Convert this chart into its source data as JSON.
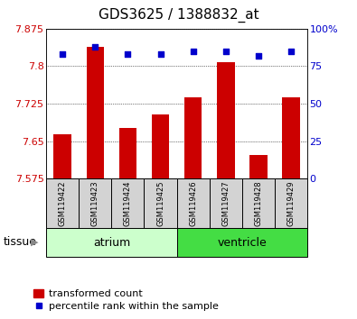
{
  "title": "GDS3625 / 1388832_at",
  "samples": [
    "GSM119422",
    "GSM119423",
    "GSM119424",
    "GSM119425",
    "GSM119426",
    "GSM119427",
    "GSM119428",
    "GSM119429"
  ],
  "bar_values": [
    7.663,
    7.838,
    7.677,
    7.703,
    7.738,
    7.808,
    7.623,
    7.738
  ],
  "percentile_values": [
    83,
    88,
    83,
    83,
    85,
    85,
    82,
    85
  ],
  "ymin": 7.575,
  "ymax": 7.875,
  "yticks": [
    7.575,
    7.65,
    7.725,
    7.8,
    7.875
  ],
  "y2min": 0,
  "y2max": 100,
  "y2ticks": [
    0,
    25,
    50,
    75,
    100
  ],
  "bar_color": "#cc0000",
  "dot_color": "#0000cc",
  "bar_width": 0.55,
  "groups": [
    {
      "label": "atrium",
      "indices": [
        0,
        1,
        2,
        3
      ],
      "facecolor": "#ccffcc",
      "edgecolor": "#000000"
    },
    {
      "label": "ventricle",
      "indices": [
        4,
        5,
        6,
        7
      ],
      "facecolor": "#44dd44",
      "edgecolor": "#000000"
    }
  ],
  "tissue_label": "tissue",
  "legend_bar_label": "transformed count",
  "legend_dot_label": "percentile rank within the sample",
  "tick_label_color_left": "#cc0000",
  "tick_label_color_right": "#0000cc",
  "title_fontsize": 11,
  "tick_fontsize": 8,
  "sample_fontsize": 6,
  "legend_fontsize": 8,
  "group_label_fontsize": 9,
  "tissue_label_fontsize": 9
}
